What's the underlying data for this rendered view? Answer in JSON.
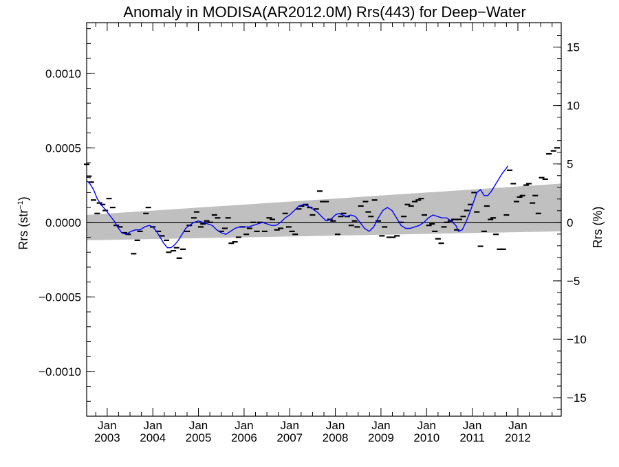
{
  "chart_data": {
    "type": "scatter",
    "title": "Anomaly in MODISA(AR2012.0M) Rrs(443) for Deep−Water",
    "ylabel_left": "Rrs (str",
    "ylabel_left_unit_exp": "−1",
    "ylabel_left_close": ")",
    "ylabel_right": "Rrs (%)",
    "xlim": [
      2002.55,
      2012.95
    ],
    "ylim_left": [
      -0.0013,
      0.00134
    ],
    "ylim_right": [
      -16.58,
      17.09
    ],
    "x_ticks": [
      {
        "x": 2003.0,
        "line1": "Jan",
        "line2": "2003"
      },
      {
        "x": 2004.0,
        "line1": "Jan",
        "line2": "2004"
      },
      {
        "x": 2005.0,
        "line1": "Jan",
        "line2": "2005"
      },
      {
        "x": 2006.0,
        "line1": "Jan",
        "line2": "2006"
      },
      {
        "x": 2007.0,
        "line1": "Jan",
        "line2": "2007"
      },
      {
        "x": 2008.0,
        "line1": "Jan",
        "line2": "2008"
      },
      {
        "x": 2009.0,
        "line1": "Jan",
        "line2": "2009"
      },
      {
        "x": 2010.0,
        "line1": "Jan",
        "line2": "2010"
      },
      {
        "x": 2011.0,
        "line1": "Jan",
        "line2": "2011"
      },
      {
        "x": 2012.0,
        "line1": "Jan",
        "line2": "2012"
      }
    ],
    "y_ticks_left": [
      {
        "v": 0.001,
        "label": "0.0010"
      },
      {
        "v": 0.0005,
        "label": "0.0005"
      },
      {
        "v": 0.0,
        "label": "0.0000"
      },
      {
        "v": -0.0005,
        "label": "−0.0005"
      },
      {
        "v": -0.001,
        "label": "−0.0010"
      }
    ],
    "y_ticks_right": [
      {
        "v": 15,
        "label": "15"
      },
      {
        "v": 10,
        "label": "10"
      },
      {
        "v": 5,
        "label": "5"
      },
      {
        "v": 0,
        "label": "0"
      },
      {
        "v": -5,
        "label": "−5"
      },
      {
        "v": -10,
        "label": "−10"
      },
      {
        "v": -15,
        "label": "−15"
      }
    ],
    "points": [
      [
        2002.55,
        0.00039
      ],
      [
        2002.6,
        0.00031
      ],
      [
        2002.65,
        0.00027
      ],
      [
        2002.7,
        0.00015
      ],
      [
        2002.78,
        6e-05
      ],
      [
        2002.83,
        0.00013
      ],
      [
        2002.9,
        0.00012
      ],
      [
        2002.96,
        8e-05
      ],
      [
        2003.04,
        0.00016
      ],
      [
        2003.12,
        0.0001
      ],
      [
        2003.2,
        -2e-05
      ],
      [
        2003.28,
        -3e-05
      ],
      [
        2003.38,
        -7e-05
      ],
      [
        2003.46,
        -8e-05
      ],
      [
        2003.58,
        -0.00021
      ],
      [
        2003.66,
        -0.00012
      ],
      [
        2003.72,
        -6e-05
      ],
      [
        2003.85,
        6e-05
      ],
      [
        2003.9,
        0.0001
      ],
      [
        2004.0,
        -3e-05
      ],
      [
        2004.12,
        -6e-05
      ],
      [
        2004.2,
        -9e-05
      ],
      [
        2004.3,
        -0.00012
      ],
      [
        2004.35,
        -0.0002
      ],
      [
        2004.45,
        -0.00019
      ],
      [
        2004.52,
        -0.00017
      ],
      [
        2004.58,
        -0.00024
      ],
      [
        2004.66,
        -0.00018
      ],
      [
        2004.75,
        -6e-05
      ],
      [
        2004.8,
        -2e-05
      ],
      [
        2004.9,
        3e-05
      ],
      [
        2004.96,
        7e-05
      ],
      [
        2005.05,
        -3e-05
      ],
      [
        2005.1,
        -1e-05
      ],
      [
        2005.18,
        1e-05
      ],
      [
        2005.26,
        0.0
      ],
      [
        2005.35,
        5e-05
      ],
      [
        2005.42,
        3e-05
      ],
      [
        2005.5,
        -6e-05
      ],
      [
        2005.58,
        -4e-05
      ],
      [
        2005.65,
        3e-05
      ],
      [
        2005.72,
        -0.00014
      ],
      [
        2005.8,
        -0.00013
      ],
      [
        2005.88,
        -0.0001
      ],
      [
        2005.96,
        -3e-05
      ],
      [
        2006.05,
        -8e-05
      ],
      [
        2006.12,
        -4e-05
      ],
      [
        2006.2,
        0.0
      ],
      [
        2006.28,
        -6e-05
      ],
      [
        2006.35,
        0.0
      ],
      [
        2006.45,
        -6e-05
      ],
      [
        2006.55,
        3e-05
      ],
      [
        2006.62,
        2e-05
      ],
      [
        2006.72,
        -5e-05
      ],
      [
        2006.8,
        -4e-05
      ],
      [
        2006.9,
        6e-05
      ],
      [
        2006.98,
        -3e-05
      ],
      [
        2007.05,
        -6e-05
      ],
      [
        2007.12,
        -8e-05
      ],
      [
        2007.2,
        9e-05
      ],
      [
        2007.26,
        0.00011
      ],
      [
        2007.35,
        0.00012
      ],
      [
        2007.44,
        0.0001
      ],
      [
        2007.5,
        5e-05
      ],
      [
        2007.58,
        9e-05
      ],
      [
        2007.66,
        0.00021
      ],
      [
        2007.72,
        0.00014
      ],
      [
        2007.8,
        0.00014
      ],
      [
        2007.88,
        2e-05
      ],
      [
        2007.95,
        1e-05
      ],
      [
        2008.05,
        -8e-05
      ],
      [
        2008.12,
        4e-05
      ],
      [
        2008.18,
        6e-05
      ],
      [
        2008.26,
        4e-05
      ],
      [
        2008.35,
        -2e-05
      ],
      [
        2008.42,
        1e-05
      ],
      [
        2008.48,
        -3e-05
      ],
      [
        2008.56,
        0.00011
      ],
      [
        2008.66,
        0.00014
      ],
      [
        2008.72,
        7e-05
      ],
      [
        2008.78,
        4e-05
      ],
      [
        2008.86,
        0.00015
      ],
      [
        2008.94,
        1e-05
      ],
      [
        2009.02,
        -9e-05
      ],
      [
        2009.08,
        -3e-05
      ],
      [
        2009.18,
        -0.0001
      ],
      [
        2009.26,
        -0.0001
      ],
      [
        2009.35,
        -9e-05
      ],
      [
        2009.44,
        0.0
      ],
      [
        2009.5,
        4e-05
      ],
      [
        2009.58,
        0.00012
      ],
      [
        2009.66,
        0.00011
      ],
      [
        2009.74,
        0.00014
      ],
      [
        2009.82,
        0.00015
      ],
      [
        2009.88,
        0.00016
      ],
      [
        2009.95,
        5e-05
      ],
      [
        2010.05,
        -2e-05
      ],
      [
        2010.12,
        -1e-05
      ],
      [
        2010.18,
        -6e-05
      ],
      [
        2010.25,
        -0.00011
      ],
      [
        2010.32,
        -0.00014
      ],
      [
        2010.38,
        -3e-05
      ],
      [
        2010.44,
        0.0
      ],
      [
        2010.52,
        1e-05
      ],
      [
        2010.6,
        2e-05
      ],
      [
        2010.66,
        -5e-05
      ],
      [
        2010.72,
        2e-05
      ],
      [
        2010.8,
        4e-05
      ],
      [
        2010.88,
        8e-05
      ],
      [
        2010.96,
        0.00012
      ],
      [
        2011.04,
        0.0002
      ],
      [
        2011.1,
        7e-05
      ],
      [
        2011.18,
        -0.00016
      ],
      [
        2011.26,
        -6e-05
      ],
      [
        2011.32,
        0.00011
      ],
      [
        2011.4,
        2e-05
      ],
      [
        2011.46,
        3e-05
      ],
      [
        2011.52,
        -8e-05
      ],
      [
        2011.6,
        -0.00018
      ],
      [
        2011.68,
        -0.00018
      ],
      [
        2011.75,
        5e-05
      ],
      [
        2011.82,
        0.00035
      ],
      [
        2011.9,
        0.00026
      ],
      [
        2011.97,
        0.00014
      ],
      [
        2012.04,
        0.00017
      ],
      [
        2012.1,
        0.00018
      ],
      [
        2012.18,
        0.00025
      ],
      [
        2012.24,
        0.00026
      ],
      [
        2012.32,
        0.00013
      ],
      [
        2012.38,
        0.00018
      ],
      [
        2012.45,
        6e-05
      ],
      [
        2012.52,
        0.0003
      ],
      [
        2012.6,
        0.00029
      ],
      [
        2012.68,
        0.00046
      ],
      [
        2012.78,
        0.00048
      ],
      [
        2012.86,
        0.0005
      ]
    ],
    "smooth_line": [
      [
        2002.55,
        0.00028
      ],
      [
        2002.62,
        0.00026
      ],
      [
        2002.7,
        0.00022
      ],
      [
        2002.78,
        0.00016
      ],
      [
        2002.86,
        0.00012
      ],
      [
        2002.95,
        9e-05
      ],
      [
        2003.05,
        5e-05
      ],
      [
        2003.15,
        1e-05
      ],
      [
        2003.25,
        -4e-05
      ],
      [
        2003.32,
        -7e-05
      ],
      [
        2003.42,
        -8e-05
      ],
      [
        2003.52,
        -6e-05
      ],
      [
        2003.62,
        -5e-05
      ],
      [
        2003.72,
        -5e-05
      ],
      [
        2003.82,
        -3e-05
      ],
      [
        2003.92,
        -2e-05
      ],
      [
        2004.0,
        -3e-05
      ],
      [
        2004.08,
        -6e-05
      ],
      [
        2004.16,
        -0.0001
      ],
      [
        2004.24,
        -0.00014
      ],
      [
        2004.32,
        -0.00017
      ],
      [
        2004.4,
        -0.00017
      ],
      [
        2004.48,
        -0.00015
      ],
      [
        2004.56,
        -0.00012
      ],
      [
        2004.64,
        -8e-05
      ],
      [
        2004.72,
        -4e-05
      ],
      [
        2004.8,
        -2e-05
      ],
      [
        2004.9,
        0.0
      ],
      [
        2005.0,
        1e-05
      ],
      [
        2005.1,
        0.0
      ],
      [
        2005.2,
        -1e-05
      ],
      [
        2005.3,
        -2e-05
      ],
      [
        2005.4,
        -5e-05
      ],
      [
        2005.5,
        -7e-05
      ],
      [
        2005.6,
        -8e-05
      ],
      [
        2005.7,
        -6e-05
      ],
      [
        2005.8,
        -4e-05
      ],
      [
        2005.9,
        -3e-05
      ],
      [
        2006.0,
        -3e-05
      ],
      [
        2006.1,
        -3e-05
      ],
      [
        2006.2,
        -2e-05
      ],
      [
        2006.3,
        -1e-05
      ],
      [
        2006.4,
        0.0
      ],
      [
        2006.5,
        -1e-05
      ],
      [
        2006.6,
        -2e-05
      ],
      [
        2006.7,
        -2e-05
      ],
      [
        2006.8,
        0.0
      ],
      [
        2006.9,
        3e-05
      ],
      [
        2007.0,
        5e-05
      ],
      [
        2007.1,
        8e-05
      ],
      [
        2007.2,
        0.00011
      ],
      [
        2007.3,
        0.00012
      ],
      [
        2007.4,
        0.00011
      ],
      [
        2007.5,
        9e-05
      ],
      [
        2007.6,
        7e-05
      ],
      [
        2007.7,
        4e-05
      ],
      [
        2007.8,
        1e-05
      ],
      [
        2007.9,
        2e-05
      ],
      [
        2008.0,
        5e-05
      ],
      [
        2008.08,
        6e-05
      ],
      [
        2008.16,
        5e-05
      ],
      [
        2008.24,
        4e-05
      ],
      [
        2008.34,
        5e-05
      ],
      [
        2008.44,
        4e-05
      ],
      [
        2008.54,
        0.0
      ],
      [
        2008.64,
        -4e-05
      ],
      [
        2008.74,
        -6e-05
      ],
      [
        2008.84,
        -3e-05
      ],
      [
        2008.94,
        3e-05
      ],
      [
        2009.04,
        8e-05
      ],
      [
        2009.14,
        0.0001
      ],
      [
        2009.24,
        8e-05
      ],
      [
        2009.34,
        3e-05
      ],
      [
        2009.44,
        -2e-05
      ],
      [
        2009.54,
        -4e-05
      ],
      [
        2009.64,
        -4e-05
      ],
      [
        2009.74,
        -3e-05
      ],
      [
        2009.84,
        -2e-05
      ],
      [
        2009.94,
        0.0
      ],
      [
        2010.04,
        3e-05
      ],
      [
        2010.14,
        5e-05
      ],
      [
        2010.24,
        4e-05
      ],
      [
        2010.34,
        3e-05
      ],
      [
        2010.44,
        3e-05
      ],
      [
        2010.54,
        1e-05
      ],
      [
        2010.64,
        -2e-05
      ],
      [
        2010.7,
        -6e-05
      ],
      [
        2010.78,
        -5e-05
      ],
      [
        2010.86,
        0.0
      ],
      [
        2010.94,
        6e-05
      ],
      [
        2011.02,
        0.00013
      ],
      [
        2011.1,
        0.0002
      ],
      [
        2011.18,
        0.00022
      ],
      [
        2011.26,
        0.00018
      ],
      [
        2011.34,
        0.00018
      ],
      [
        2011.42,
        0.00021
      ],
      [
        2011.5,
        0.00025
      ],
      [
        2011.58,
        0.00029
      ],
      [
        2011.66,
        0.00033
      ],
      [
        2011.74,
        0.00036
      ],
      [
        2011.78,
        0.00038
      ]
    ],
    "trend_band": {
      "x_start": 2002.55,
      "x_end": 2012.95,
      "upper_start": 5e-05,
      "upper_end": 0.00026,
      "lower_start": -0.00012,
      "lower_end": -6e-05
    },
    "colors": {
      "line": "#0000ff",
      "band": "#c0c0c0",
      "points": "#000000"
    }
  }
}
